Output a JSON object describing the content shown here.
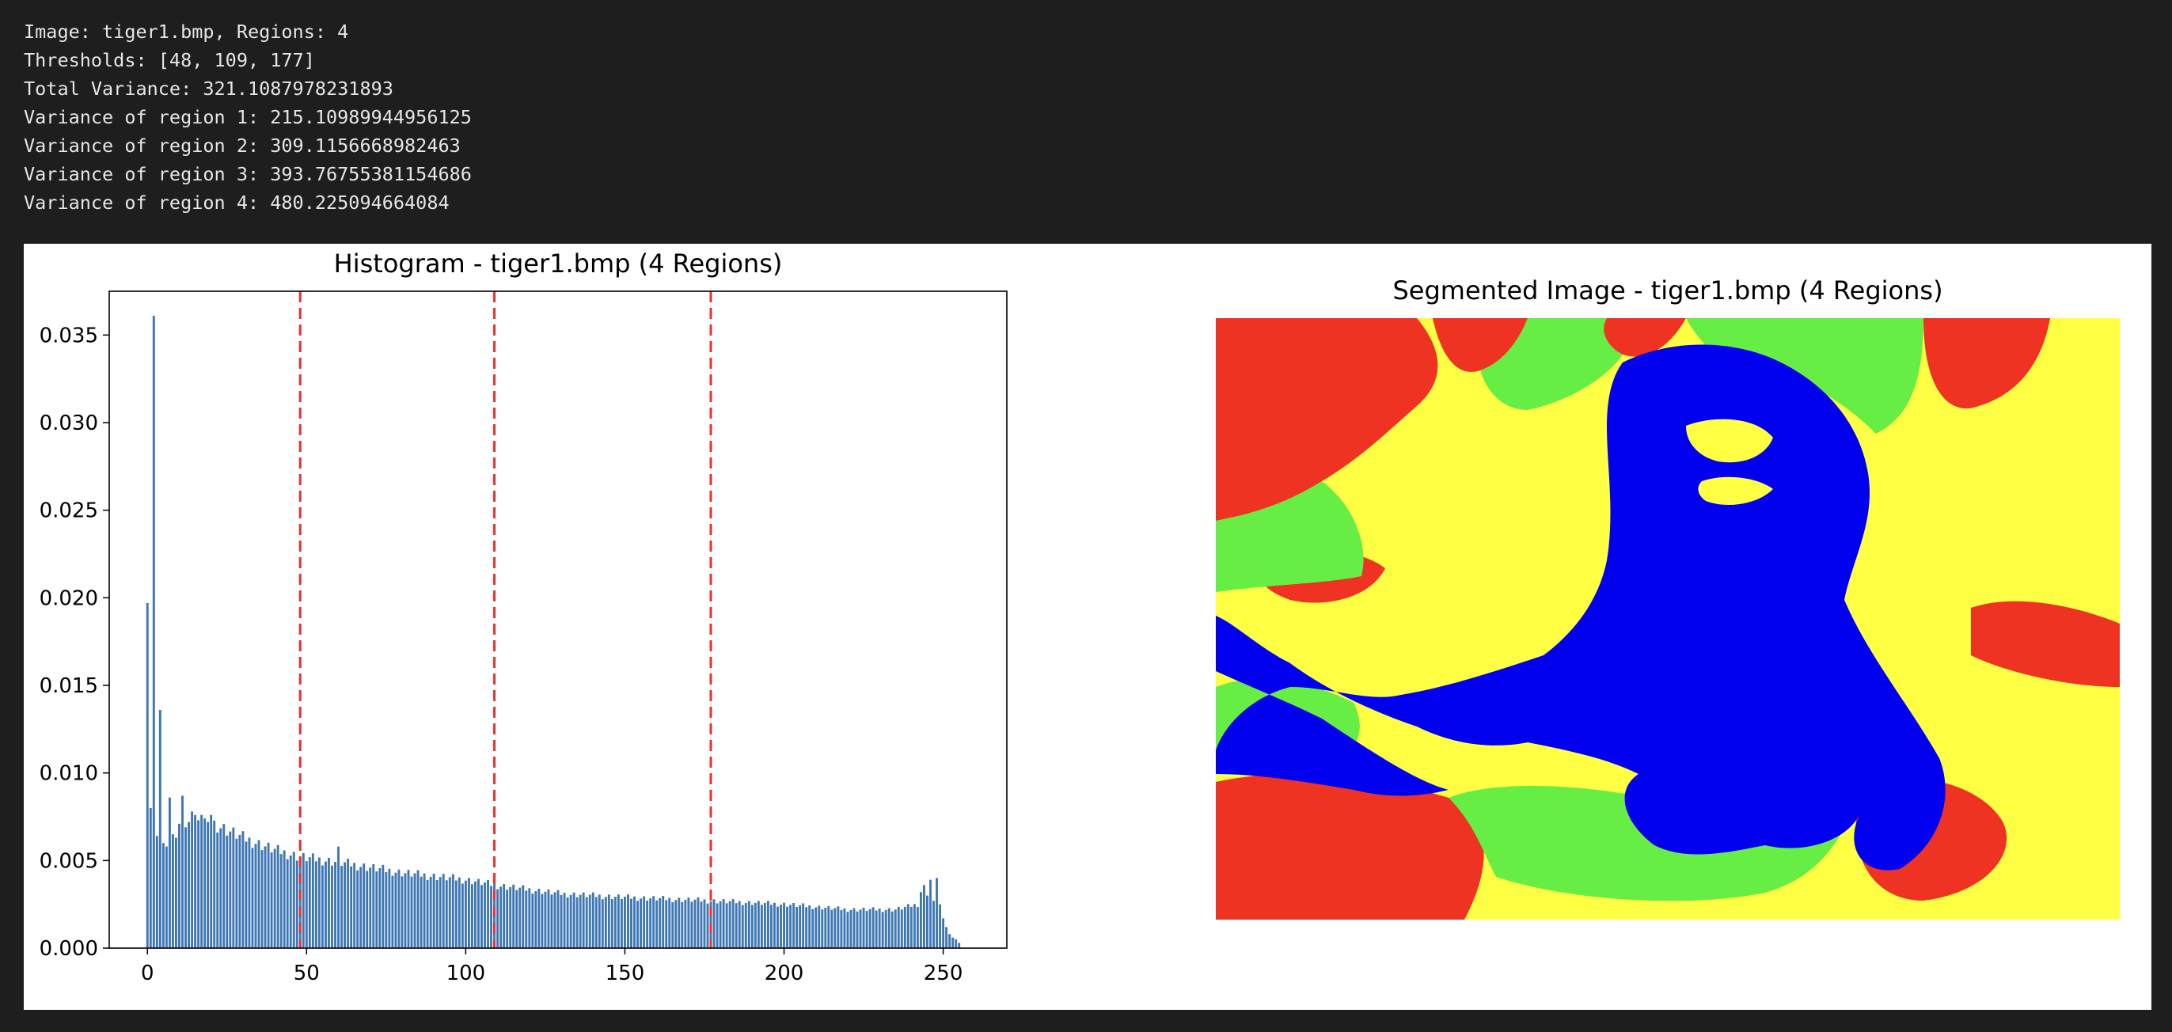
{
  "console": {
    "lines": [
      "Image: tiger1.bmp, Regions: 4",
      "Thresholds: [48, 109, 177]",
      "Total Variance: 321.1087978231893",
      "Variance of region 1: 215.10989944956125",
      "Variance of region 2: 309.1156668982463",
      "Variance of region 3: 393.76755381154686",
      "Variance of region 4: 480.225094664084"
    ]
  },
  "figure": {
    "histogram_title": "Histogram - tiger1.bmp (4 Regions)",
    "segmented_title": "Segmented Image - tiger1.bmp (4 Regions)",
    "segment_colors": [
      "#ee3323",
      "#66ee44",
      "#0000ee",
      "#ffff44"
    ]
  },
  "chart_data": {
    "type": "bar",
    "title": "Histogram - tiger1.bmp (4 Regions)",
    "xlabel": "",
    "ylabel": "",
    "xlim": [
      -12,
      270
    ],
    "ylim": [
      0,
      0.0375
    ],
    "x_ticks": [
      0,
      50,
      100,
      150,
      200,
      250
    ],
    "y_ticks": [
      0.0,
      0.005,
      0.01,
      0.015,
      0.02,
      0.025,
      0.03,
      0.035
    ],
    "y_tick_labels": [
      "0.000",
      "0.005",
      "0.010",
      "0.015",
      "0.020",
      "0.025",
      "0.030",
      "0.035"
    ],
    "bar_color": "#3f77b4",
    "threshold_color": "#e8322a",
    "thresholds": [
      48,
      109,
      177
    ],
    "grid": false,
    "spikes": {
      "0": 0.0197,
      "1": 0.008,
      "2": 0.0361,
      "3": 0.0064,
      "4": 0.0136,
      "5": 0.006,
      "6": 0.0058,
      "7": 0.0086,
      "8": 0.0065,
      "9": 0.0063,
      "10": 0.0071,
      "11": 0.0087,
      "12": 0.0069,
      "13": 0.0072,
      "14": 0.0078,
      "15": 0.0076,
      "16": 0.0073,
      "17": 0.0076,
      "18": 0.0074,
      "19": 0.0072,
      "20": 0.0076,
      "60": 0.0058,
      "243": 0.0032,
      "244": 0.0036,
      "245": 0.003,
      "246": 0.0039,
      "247": 0.0027,
      "248": 0.004,
      "249": 0.0025,
      "250": 0.0017,
      "251": 0.0012,
      "252": 0.0008,
      "253": 0.0006,
      "254": 0.0005,
      "255": 0.0003
    },
    "trend": [
      [
        20,
        0.0072
      ],
      [
        30,
        0.0063
      ],
      [
        40,
        0.0056
      ],
      [
        48,
        0.0052
      ],
      [
        60,
        0.0049
      ],
      [
        80,
        0.0043
      ],
      [
        100,
        0.0039
      ],
      [
        109,
        0.0036
      ],
      [
        130,
        0.0031
      ],
      [
        150,
        0.0029
      ],
      [
        177,
        0.0027
      ],
      [
        200,
        0.0025
      ],
      [
        220,
        0.0022
      ],
      [
        235,
        0.0022
      ],
      [
        242,
        0.0025
      ]
    ]
  }
}
